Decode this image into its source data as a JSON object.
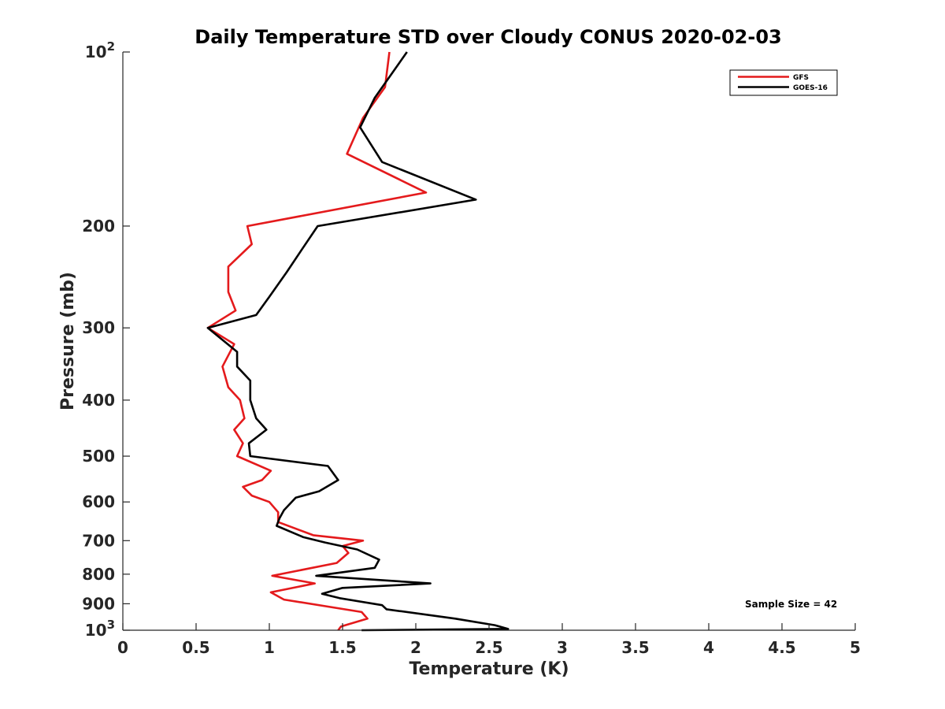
{
  "chart_data": {
    "type": "line",
    "title": "Daily Temperature STD over Cloudy CONUS 2020-02-03",
    "xlabel": "Temperature (K)",
    "ylabel": "Pressure (mb)",
    "xlim": [
      0,
      5
    ],
    "ylim": [
      100,
      1000
    ],
    "y_scale": "log",
    "y_reversed": true,
    "x_ticks": [
      0,
      0.5,
      1,
      1.5,
      2,
      2.5,
      3,
      3.5,
      4,
      4.5,
      5
    ],
    "x_tick_labels": [
      "0",
      "0.5",
      "1",
      "1.5",
      "2",
      "2.5",
      "3",
      "3.5",
      "4",
      "4.5",
      "5"
    ],
    "y_ticks": [
      100,
      200,
      300,
      400,
      500,
      600,
      700,
      800,
      900,
      1000
    ],
    "y_tick_labels": [
      {
        "base": "10",
        "exp": "2"
      },
      {
        "text": "200"
      },
      {
        "text": "300"
      },
      {
        "text": "400"
      },
      {
        "text": "500"
      },
      {
        "text": "600"
      },
      {
        "text": "700"
      },
      {
        "text": "800"
      },
      {
        "text": "900"
      },
      {
        "base": "10",
        "exp": "3"
      }
    ],
    "grid": false,
    "legend_position": "top-right",
    "annotation": "Sample Size = 42",
    "series": [
      {
        "name": "GFS",
        "color": "#e41a1c",
        "points": [
          [
            1.82,
            100
          ],
          [
            1.79,
            115
          ],
          [
            1.64,
            130
          ],
          [
            1.53,
            150
          ],
          [
            2.07,
            175
          ],
          [
            0.85,
            200
          ],
          [
            0.88,
            215
          ],
          [
            0.72,
            235
          ],
          [
            0.72,
            260
          ],
          [
            0.77,
            280
          ],
          [
            0.58,
            300
          ],
          [
            0.76,
            320
          ],
          [
            0.68,
            350
          ],
          [
            0.72,
            380
          ],
          [
            0.8,
            400
          ],
          [
            0.83,
            430
          ],
          [
            0.76,
            450
          ],
          [
            0.82,
            475
          ],
          [
            0.78,
            500
          ],
          [
            1.01,
            530
          ],
          [
            0.95,
            550
          ],
          [
            0.82,
            565
          ],
          [
            0.88,
            585
          ],
          [
            1.0,
            600
          ],
          [
            1.06,
            625
          ],
          [
            1.06,
            650
          ],
          [
            1.3,
            685
          ],
          [
            1.64,
            700
          ],
          [
            1.5,
            715
          ],
          [
            1.54,
            735
          ],
          [
            1.46,
            765
          ],
          [
            1.02,
            805
          ],
          [
            1.31,
            830
          ],
          [
            1.01,
            860
          ],
          [
            1.1,
            885
          ],
          [
            1.63,
            930
          ],
          [
            1.67,
            955
          ],
          [
            1.49,
            985
          ],
          [
            1.47,
            1000
          ]
        ]
      },
      {
        "name": "GOES-16",
        "color": "#000000",
        "points": [
          [
            1.94,
            100
          ],
          [
            1.72,
            120
          ],
          [
            1.62,
            135
          ],
          [
            1.77,
            155
          ],
          [
            2.41,
            180
          ],
          [
            1.33,
            200
          ],
          [
            1.22,
            220
          ],
          [
            1.12,
            240
          ],
          [
            1.0,
            265
          ],
          [
            0.91,
            285
          ],
          [
            0.58,
            300
          ],
          [
            0.78,
            330
          ],
          [
            0.78,
            350
          ],
          [
            0.87,
            370
          ],
          [
            0.87,
            400
          ],
          [
            0.91,
            430
          ],
          [
            0.98,
            450
          ],
          [
            0.86,
            475
          ],
          [
            0.87,
            500
          ],
          [
            1.4,
            520
          ],
          [
            1.47,
            550
          ],
          [
            1.34,
            575
          ],
          [
            1.18,
            590
          ],
          [
            1.1,
            620
          ],
          [
            1.07,
            640
          ],
          [
            1.05,
            660
          ],
          [
            1.23,
            690
          ],
          [
            1.38,
            705
          ],
          [
            1.6,
            725
          ],
          [
            1.75,
            755
          ],
          [
            1.72,
            780
          ],
          [
            1.32,
            805
          ],
          [
            2.1,
            830
          ],
          [
            1.5,
            845
          ],
          [
            1.36,
            865
          ],
          [
            1.48,
            880
          ],
          [
            1.77,
            905
          ],
          [
            1.8,
            920
          ],
          [
            2.27,
            955
          ],
          [
            2.54,
            980
          ],
          [
            2.63,
            995
          ],
          [
            1.63,
            1000
          ]
        ]
      }
    ]
  }
}
